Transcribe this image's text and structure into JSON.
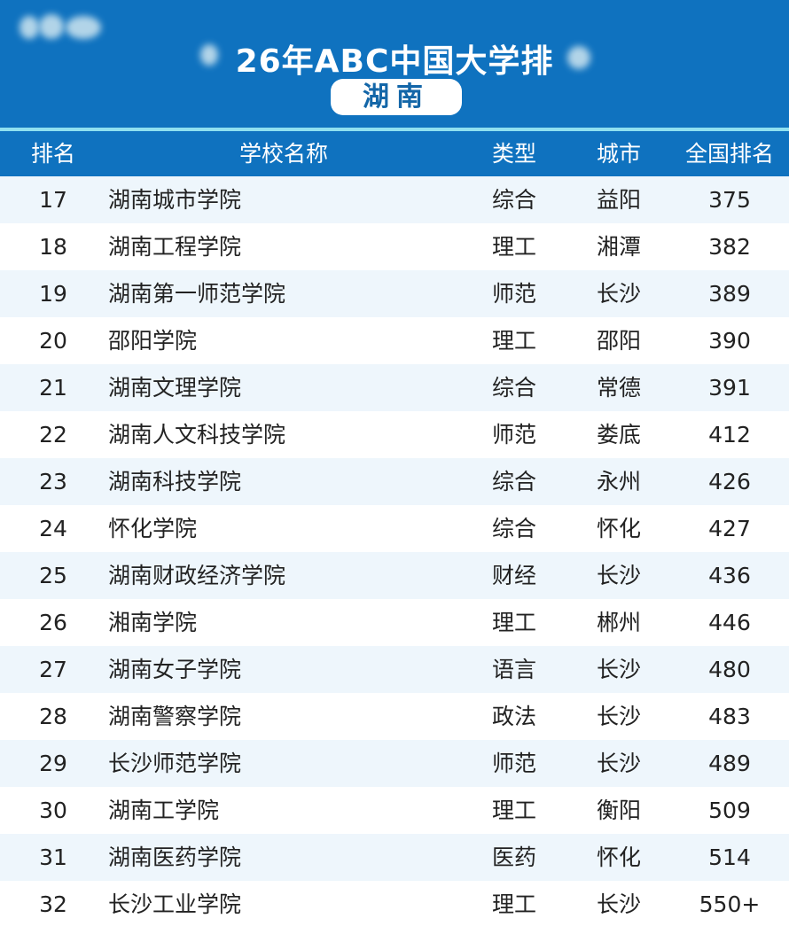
{
  "header": {
    "title": "26年ABC中国大学排",
    "province": "湖南"
  },
  "columns": [
    "排名",
    "学校名称",
    "类型",
    "城市",
    "全国排名"
  ],
  "colors": {
    "header_bg": "#0f72bf",
    "row_alt": "#eef6fc",
    "accent_line": "#8fe0f0"
  },
  "rows": [
    [
      "17",
      "湖南城市学院",
      "综合",
      "益阳",
      "375"
    ],
    [
      "18",
      "湖南工程学院",
      "理工",
      "湘潭",
      "382"
    ],
    [
      "19",
      "湖南第一师范学院",
      "师范",
      "长沙",
      "389"
    ],
    [
      "20",
      "邵阳学院",
      "理工",
      "邵阳",
      "390"
    ],
    [
      "21",
      "湖南文理学院",
      "综合",
      "常德",
      "391"
    ],
    [
      "22",
      "湖南人文科技学院",
      "师范",
      "娄底",
      "412"
    ],
    [
      "23",
      "湖南科技学院",
      "综合",
      "永州",
      "426"
    ],
    [
      "24",
      "怀化学院",
      "综合",
      "怀化",
      "427"
    ],
    [
      "25",
      "湖南财政经济学院",
      "财经",
      "长沙",
      "436"
    ],
    [
      "26",
      "湘南学院",
      "理工",
      "郴州",
      "446"
    ],
    [
      "27",
      "湖南女子学院",
      "语言",
      "长沙",
      "480"
    ],
    [
      "28",
      "湖南警察学院",
      "政法",
      "长沙",
      "483"
    ],
    [
      "29",
      "长沙师范学院",
      "师范",
      "长沙",
      "489"
    ],
    [
      "30",
      "湖南工学院",
      "理工",
      "衡阳",
      "509"
    ],
    [
      "31",
      "湖南医药学院",
      "医药",
      "怀化",
      "514"
    ],
    [
      "32",
      "长沙工业学院",
      "理工",
      "长沙",
      "550+"
    ]
  ]
}
